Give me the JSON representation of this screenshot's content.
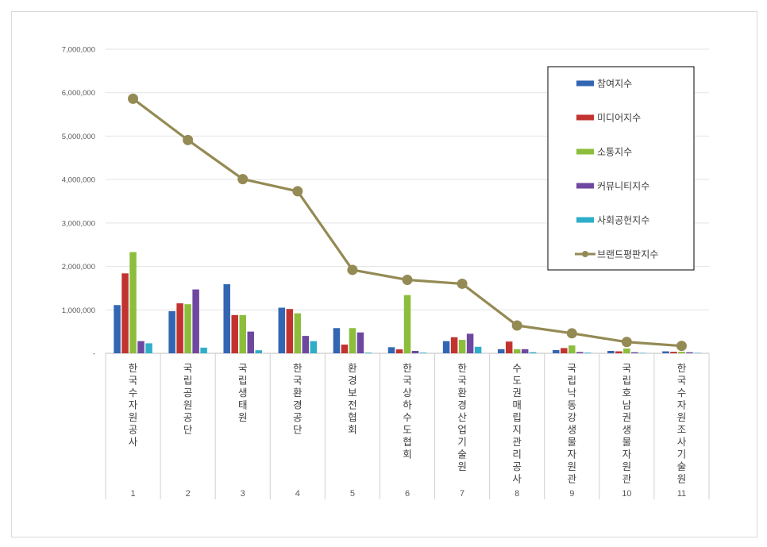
{
  "chart_data": {
    "type": "bar",
    "title": "",
    "xlabel": "",
    "ylabel": "",
    "ylim": [
      0,
      7000000
    ],
    "yticks": [
      0,
      1000000,
      2000000,
      3000000,
      4000000,
      5000000,
      6000000,
      7000000
    ],
    "ytick_labels": [
      "-",
      "1,000,000",
      "2,000,000",
      "3,000,000",
      "4,000,000",
      "5,000,000",
      "6,000,000",
      "7,000,000"
    ],
    "grid": true,
    "legend_position": "top-right",
    "categories": [
      "1",
      "2",
      "3",
      "4",
      "5",
      "6",
      "7",
      "8",
      "9",
      "10",
      "11"
    ],
    "category_names": [
      "한국수자원공사",
      "국립공원공단",
      "국립생태원",
      "한국환경공단",
      "환경보전협회",
      "한국상하수도협회",
      "한국환경산업기술원",
      "수도권매립지관리공사",
      "국립낙동강생물자원관",
      "국립호남권생물자원관",
      "한국수자원조사기술원"
    ],
    "series": [
      {
        "name": "참여지수",
        "type": "bar",
        "color": "#3266b3",
        "values": [
          1110000,
          970000,
          1590000,
          1050000,
          580000,
          140000,
          280000,
          95000,
          75000,
          55000,
          45000
        ]
      },
      {
        "name": "미디어지수",
        "type": "bar",
        "color": "#c2332f",
        "values": [
          1840000,
          1150000,
          880000,
          1020000,
          200000,
          90000,
          370000,
          270000,
          120000,
          45000,
          35000
        ]
      },
      {
        "name": "소통지수",
        "type": "bar",
        "color": "#8cbe3c",
        "values": [
          2330000,
          1130000,
          880000,
          920000,
          580000,
          1340000,
          310000,
          95000,
          180000,
          110000,
          35000
        ]
      },
      {
        "name": "커뮤니티지수",
        "type": "bar",
        "color": "#6e48a0",
        "values": [
          280000,
          1470000,
          500000,
          400000,
          480000,
          55000,
          450000,
          95000,
          30000,
          25000,
          25000
        ]
      },
      {
        "name": "사회공헌지수",
        "type": "bar",
        "color": "#2eaec8",
        "values": [
          230000,
          130000,
          70000,
          280000,
          15000,
          15000,
          150000,
          25000,
          15000,
          10000,
          10000
        ]
      },
      {
        "name": "브랜드평판지수",
        "type": "line",
        "color": "#948a54",
        "values": [
          5860000,
          4910000,
          4010000,
          3730000,
          1920000,
          1690000,
          1600000,
          640000,
          460000,
          260000,
          170000
        ]
      }
    ]
  }
}
